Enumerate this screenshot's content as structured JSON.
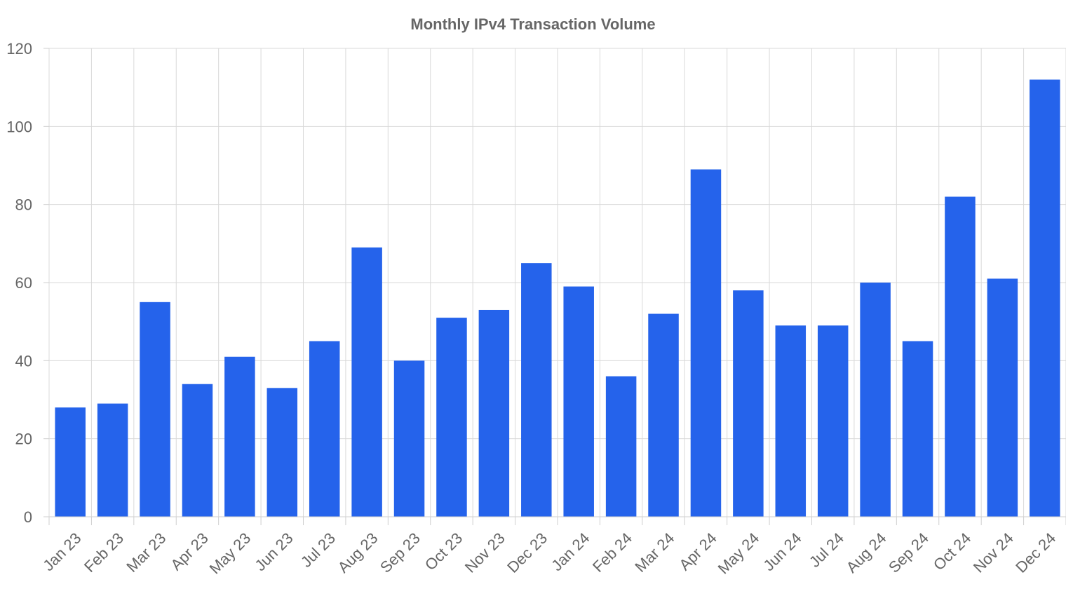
{
  "chart_data": {
    "type": "bar",
    "title": "Monthly IPv4 Transaction Volume",
    "xlabel": "",
    "ylabel": "",
    "categories": [
      "Jan 23",
      "Feb 23",
      "Mar 23",
      "Apr 23",
      "May 23",
      "Jun 23",
      "Jul 23",
      "Aug 23",
      "Sep 23",
      "Oct 23",
      "Nov 23",
      "Dec 23",
      "Jan 24",
      "Feb 24",
      "Mar 24",
      "Apr 24",
      "May 24",
      "Jun 24",
      "Jul 24",
      "Aug 24",
      "Sep 24",
      "Oct 24",
      "Nov 24",
      "Dec 24"
    ],
    "values": [
      28,
      29,
      55,
      34,
      41,
      33,
      45,
      69,
      40,
      51,
      53,
      65,
      59,
      36,
      52,
      89,
      58,
      49,
      49,
      60,
      45,
      82,
      61,
      112
    ],
    "ylim": [
      0,
      120
    ],
    "yticks": [
      0,
      20,
      40,
      60,
      80,
      100,
      120
    ],
    "grid": true,
    "bar_color": "#2563eb"
  }
}
